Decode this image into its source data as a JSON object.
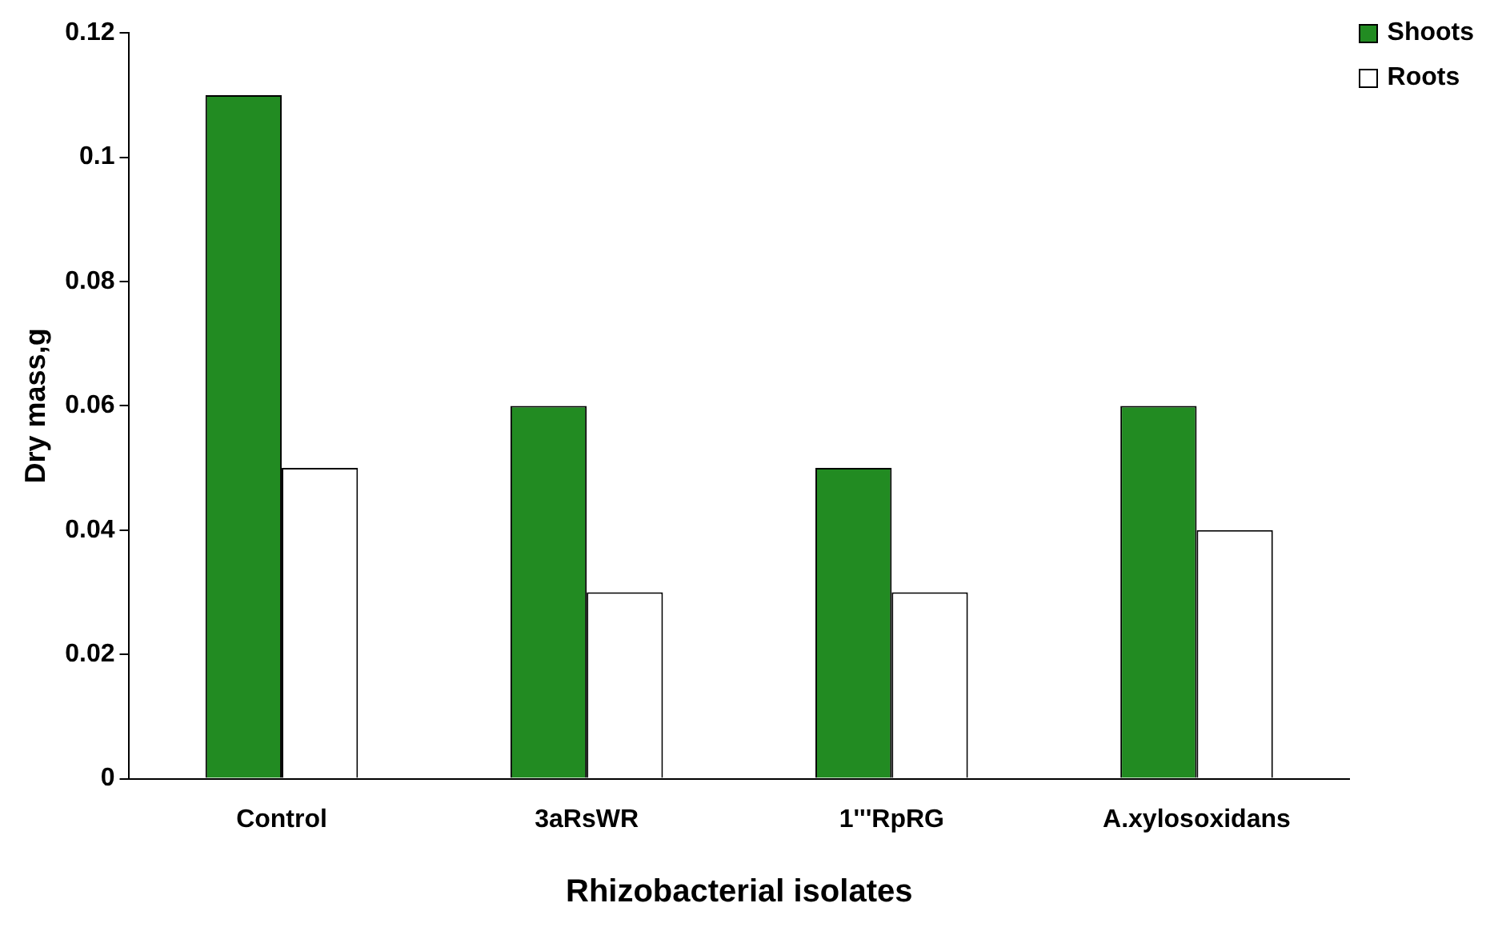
{
  "chart_data": {
    "type": "bar",
    "xlabel": "Rhizobacterial isolates",
    "ylabel": "Dry mass,g",
    "categories": [
      "Control",
      "3aRsWR",
      "1'''RpRG",
      "A.xylosoxidans"
    ],
    "series": [
      {
        "name": "Shoots",
        "color": "#228b22",
        "values": [
          0.11,
          0.06,
          0.05,
          0.06
        ]
      },
      {
        "name": "Roots",
        "color": "#ffffff",
        "values": [
          0.05,
          0.03,
          0.03,
          0.04
        ]
      }
    ],
    "ylim": [
      0,
      0.12
    ],
    "yticks": [
      0,
      0.02,
      0.04,
      0.06,
      0.08,
      0.1,
      0.12
    ],
    "grid": false,
    "legend": "top right"
  }
}
